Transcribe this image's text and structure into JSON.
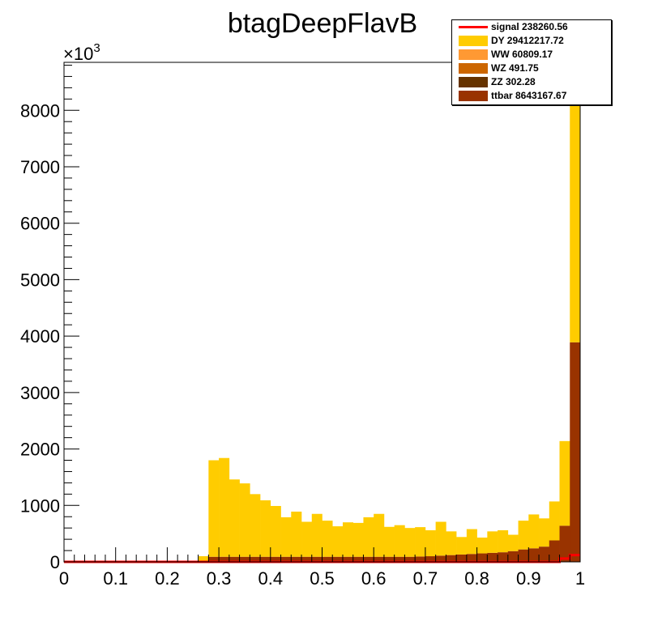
{
  "chart_data": {
    "type": "histogram-stack",
    "title": "btagDeepFlavB",
    "y_exponent_label": "×10",
    "y_exponent_power": "3",
    "xlim": [
      0,
      1
    ],
    "ylim": [
      0,
      8850
    ],
    "x_ticks": [
      "0",
      "0.1",
      "0.2",
      "0.3",
      "0.4",
      "0.5",
      "0.6",
      "0.7",
      "0.8",
      "0.9",
      "1"
    ],
    "y_ticks": [
      "0",
      "1000",
      "2000",
      "3000",
      "4000",
      "5000",
      "6000",
      "7000",
      "8000"
    ],
    "bin_edges_start": 0.26,
    "bin_width": 0.02,
    "stack_order": [
      "ttbar",
      "ZZ",
      "WZ",
      "WW",
      "DY"
    ],
    "series": [
      {
        "name": "signal 238260.56",
        "kind": "line",
        "color": "#ff0000",
        "values": [
          0,
          0,
          0,
          0,
          0,
          0,
          0,
          0,
          0,
          0,
          0,
          0,
          0,
          0,
          0,
          0,
          0,
          0,
          0,
          0,
          0,
          0,
          0,
          0,
          0,
          0,
          0,
          0,
          0,
          0,
          0,
          0,
          0,
          0,
          0,
          0,
          0,
          0,
          0,
          0,
          0,
          0,
          0,
          0,
          0,
          0,
          0,
          0,
          60,
          120
        ]
      },
      {
        "name": "DY 29412217.72",
        "kind": "fill",
        "color": "#ffcc00",
        "values": [
          100,
          1710,
          1750,
          1370,
          1300,
          1110,
          1000,
          900,
          700,
          800,
          620,
          760,
          640,
          540,
          610,
          600,
          700,
          760,
          530,
          560,
          510,
          520,
          460,
          600,
          420,
          310,
          440,
          280,
          380,
          390,
          290,
          510,
          600,
          500,
          690,
          1500,
          4480
        ]
      },
      {
        "name": "WW 60809.17",
        "kind": "fill",
        "color": "#ff9933",
        "values": []
      },
      {
        "name": "WZ 491.75",
        "kind": "fill",
        "color": "#cc6600",
        "values": []
      },
      {
        "name": "ZZ 302.28",
        "kind": "fill",
        "color": "#663300",
        "values": []
      },
      {
        "name": "ttbar 8643167.67",
        "kind": "fill",
        "color": "#993300",
        "values": [
          0,
          90,
          90,
          90,
          90,
          90,
          90,
          90,
          90,
          90,
          90,
          90,
          90,
          90,
          90,
          90,
          90,
          90,
          90,
          90,
          90,
          95,
          100,
          110,
          120,
          130,
          140,
          150,
          160,
          170,
          190,
          220,
          240,
          270,
          380,
          640,
          3890
        ]
      }
    ],
    "legend_position": "top-right",
    "grid": false
  }
}
